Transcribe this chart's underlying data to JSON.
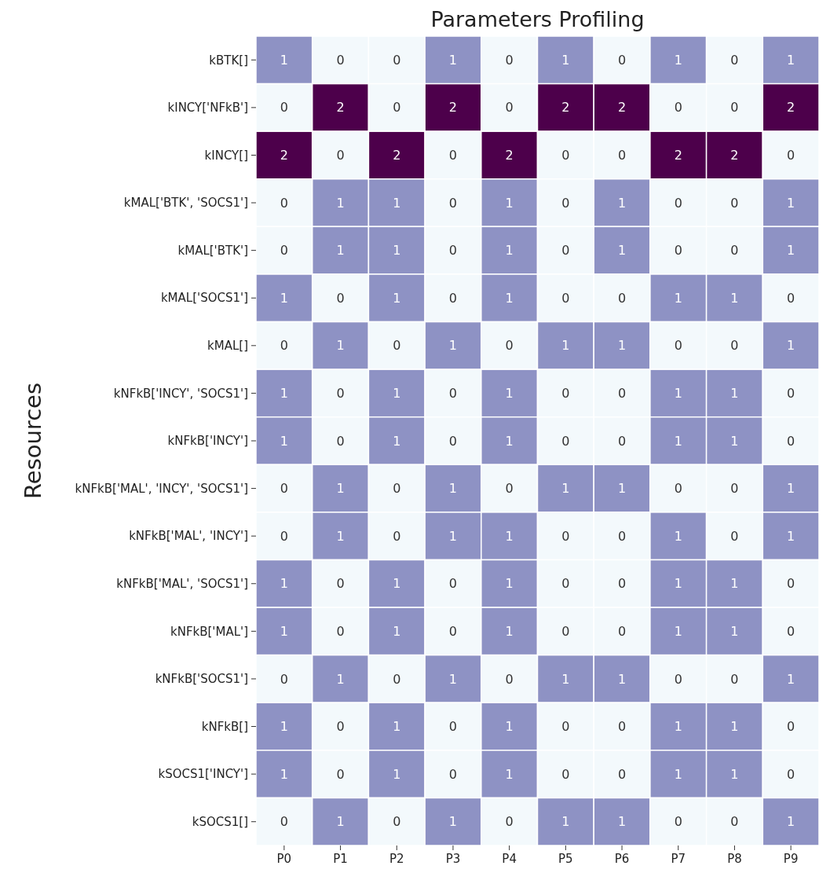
{
  "chart_data": {
    "type": "heatmap",
    "title": "Parameters Profiling",
    "ylabel": "Resources",
    "data_labels": true,
    "categories": [
      "P0",
      "P1",
      "P2",
      "P3",
      "P4",
      "P5",
      "P6",
      "P7",
      "P8",
      "P9"
    ],
    "y_categories": [
      "kBTK[]",
      "kINCY['NFkB']",
      "kINCY[]",
      "kMAL['BTK', 'SOCS1']",
      "kMAL['BTK']",
      "kMAL['SOCS1']",
      "kMAL[]",
      "kNFkB['INCY', 'SOCS1']",
      "kNFkB['INCY']",
      "kNFkB['MAL', 'INCY', 'SOCS1']",
      "kNFkB['MAL', 'INCY']",
      "kNFkB['MAL', 'SOCS1']",
      "kNFkB['MAL']",
      "kNFkB['SOCS1']",
      "kNFkB[]",
      "kSOCS1['INCY']",
      "kSOCS1[]"
    ],
    "cells": [
      [
        1,
        0,
        0,
        1,
        0,
        1,
        0,
        1,
        0,
        1
      ],
      [
        0,
        2,
        0,
        2,
        0,
        2,
        2,
        0,
        0,
        2
      ],
      [
        2,
        0,
        2,
        0,
        2,
        0,
        0,
        2,
        2,
        0
      ],
      [
        0,
        1,
        1,
        0,
        1,
        0,
        1,
        0,
        0,
        1
      ],
      [
        0,
        1,
        1,
        0,
        1,
        0,
        1,
        0,
        0,
        1
      ],
      [
        1,
        0,
        1,
        0,
        1,
        0,
        0,
        1,
        1,
        0
      ],
      [
        0,
        1,
        0,
        1,
        0,
        1,
        1,
        0,
        0,
        1
      ],
      [
        1,
        0,
        1,
        0,
        1,
        0,
        0,
        1,
        1,
        0
      ],
      [
        1,
        0,
        1,
        0,
        1,
        0,
        0,
        1,
        1,
        0
      ],
      [
        0,
        1,
        0,
        1,
        0,
        1,
        1,
        0,
        0,
        1
      ],
      [
        0,
        1,
        0,
        1,
        1,
        0,
        0,
        1,
        0,
        1
      ],
      [
        1,
        0,
        1,
        0,
        1,
        0,
        0,
        1,
        1,
        0
      ],
      [
        1,
        0,
        1,
        0,
        1,
        0,
        0,
        1,
        1,
        0
      ],
      [
        0,
        1,
        0,
        1,
        0,
        1,
        1,
        0,
        0,
        1
      ],
      [
        1,
        0,
        1,
        0,
        1,
        0,
        0,
        1,
        1,
        0
      ],
      [
        1,
        0,
        1,
        0,
        1,
        0,
        0,
        1,
        1,
        0
      ],
      [
        0,
        1,
        0,
        1,
        0,
        1,
        1,
        0,
        0,
        1
      ]
    ]
  }
}
